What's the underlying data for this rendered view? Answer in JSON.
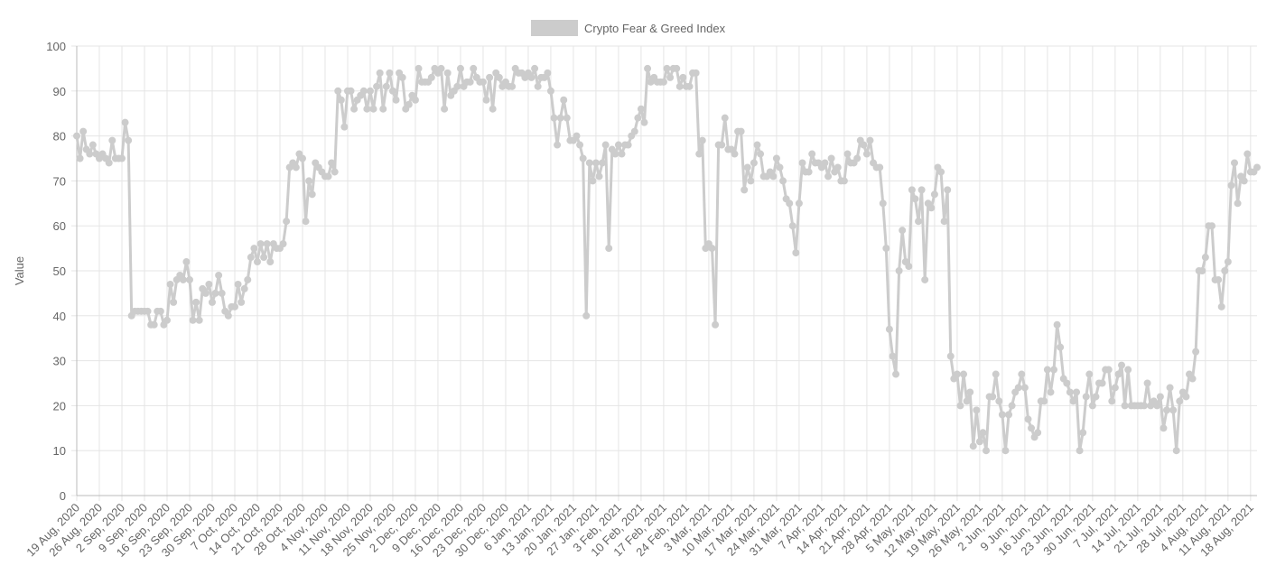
{
  "chart_data": {
    "type": "line",
    "series": [
      {
        "name": "Crypto Fear & Greed Index",
        "color": "#cccccc",
        "values": [
          80,
          75,
          81,
          77,
          76,
          78,
          76,
          75,
          76,
          75,
          74,
          79,
          75,
          75,
          75,
          83,
          79,
          40,
          41,
          41,
          41,
          41,
          41,
          38,
          38,
          41,
          41,
          38,
          39,
          47,
          43,
          48,
          49,
          48,
          52,
          48,
          39,
          43,
          39,
          46,
          45,
          47,
          43,
          45,
          49,
          45,
          41,
          40,
          42,
          42,
          47,
          43,
          46,
          48,
          53,
          55,
          52,
          56,
          53,
          56,
          52,
          56,
          55,
          55,
          56,
          61,
          73,
          74,
          73,
          76,
          75,
          61,
          70,
          67,
          74,
          73,
          72,
          71,
          71,
          74,
          72,
          90,
          88,
          82,
          90,
          90,
          86,
          88,
          89,
          90,
          86,
          90,
          86,
          91,
          94,
          86,
          91,
          94,
          90,
          88,
          94,
          93,
          86,
          87,
          89,
          88,
          95,
          92,
          92,
          92,
          93,
          95,
          94,
          95,
          86,
          94,
          89,
          90,
          91,
          95,
          91,
          92,
          92,
          95,
          93,
          92,
          92,
          88,
          93,
          86,
          94,
          93,
          91,
          92,
          91,
          91,
          95,
          94,
          94,
          93,
          94,
          93,
          95,
          91,
          93,
          93,
          94,
          90,
          84,
          78,
          84,
          88,
          84,
          79,
          79,
          80,
          78,
          75,
          40,
          74,
          70,
          74,
          71,
          74,
          78,
          55,
          77,
          76,
          78,
          76,
          78,
          78,
          80,
          81,
          84,
          86,
          83,
          95,
          92,
          93,
          92,
          92,
          92,
          95,
          93,
          95,
          95,
          91,
          93,
          91,
          91,
          94,
          94,
          76,
          79,
          55,
          56,
          55,
          38,
          78,
          78,
          84,
          77,
          77,
          76,
          81,
          81,
          68,
          73,
          70,
          74,
          78,
          76,
          71,
          71,
          72,
          71,
          75,
          73,
          70,
          66,
          65,
          60,
          54,
          65,
          74,
          72,
          72,
          76,
          74,
          74,
          73,
          74,
          71,
          75,
          72,
          73,
          70,
          70,
          76,
          74,
          74,
          75,
          79,
          78,
          76,
          79,
          74,
          73,
          73,
          65,
          55,
          37,
          31,
          27,
          50,
          59,
          52,
          51,
          68,
          66,
          61,
          68,
          48,
          65,
          64,
          67,
          73,
          72,
          61,
          68,
          31,
          26,
          27,
          20,
          27,
          21,
          23,
          11,
          19,
          12,
          14,
          10,
          22,
          22,
          27,
          21,
          18,
          10,
          18,
          20,
          23,
          24,
          27,
          24,
          17,
          15,
          13,
          14,
          21,
          21,
          28,
          23,
          28,
          38,
          33,
          26,
          25,
          23,
          21,
          23,
          10,
          14,
          22,
          27,
          20,
          22,
          25,
          25,
          28,
          28,
          21,
          24,
          27,
          29,
          20,
          28,
          20,
          20,
          20,
          20,
          20,
          25,
          20,
          21,
          20,
          22,
          15,
          19,
          24,
          19,
          10,
          21,
          23,
          22,
          27,
          26,
          32,
          50,
          50,
          53,
          60,
          60,
          48,
          48,
          42,
          50,
          52,
          69,
          74,
          65,
          71,
          70,
          76,
          72,
          72,
          73
        ]
      }
    ],
    "categories": [
      "19 Aug, 2020",
      null,
      null,
      null,
      null,
      null,
      null,
      "26 Aug, 2020",
      null,
      null,
      null,
      null,
      null,
      null,
      "2 Sep, 2020",
      null,
      null,
      null,
      null,
      null,
      null,
      "9 Sep, 2020",
      null,
      null,
      null,
      null,
      null,
      null,
      "16 Sep, 2020",
      null,
      null,
      null,
      null,
      null,
      null,
      "23 Sep, 2020",
      null,
      null,
      null,
      null,
      null,
      null,
      "30 Sep, 2020",
      null,
      null,
      null,
      null,
      null,
      null,
      "7 Oct, 2020",
      null,
      null,
      null,
      null,
      null,
      null,
      "14 Oct, 2020",
      null,
      null,
      null,
      null,
      null,
      null,
      "21 Oct, 2020",
      null,
      null,
      null,
      null,
      null,
      null,
      "28 Oct, 2020",
      null,
      null,
      null,
      null,
      null,
      null,
      "4 Nov, 2020",
      null,
      null,
      null,
      null,
      null,
      null,
      "11 Nov, 2020",
      null,
      null,
      null,
      null,
      null,
      null,
      "18 Nov, 2020",
      null,
      null,
      null,
      null,
      null,
      null,
      "25 Nov, 2020",
      null,
      null,
      null,
      null,
      null,
      null,
      "2 Dec, 2020",
      null,
      null,
      null,
      null,
      null,
      null,
      "9 Dec, 2020",
      null,
      null,
      null,
      null,
      null,
      null,
      "16 Dec, 2020",
      null,
      null,
      null,
      null,
      null,
      null,
      "23 Dec, 2020",
      null,
      null,
      null,
      null,
      null,
      null,
      "30 Dec, 2020",
      null,
      null,
      null,
      null,
      null,
      null,
      "6 Jan, 2021",
      null,
      null,
      null,
      null,
      null,
      null,
      "13 Jan, 2021",
      null,
      null,
      null,
      null,
      null,
      null,
      "20 Jan, 2021",
      null,
      null,
      null,
      null,
      null,
      null,
      "27 Jan, 2021",
      null,
      null,
      null,
      null,
      null,
      null,
      "3 Feb, 2021",
      null,
      null,
      null,
      null,
      null,
      null,
      "10 Feb, 2021",
      null,
      null,
      null,
      null,
      null,
      null,
      "17 Feb, 2021",
      null,
      null,
      null,
      null,
      null,
      null,
      "24 Feb, 2021",
      null,
      null,
      null,
      null,
      null,
      null,
      "3 Mar, 2021",
      null,
      null,
      null,
      null,
      null,
      null,
      "10 Mar, 2021",
      null,
      null,
      null,
      null,
      null,
      null,
      "17 Mar, 2021",
      null,
      null,
      null,
      null,
      null,
      null,
      "24 Mar, 2021",
      null,
      null,
      null,
      null,
      null,
      null,
      "31 Mar, 2021",
      null,
      null,
      null,
      null,
      null,
      null,
      "7 Apr, 2021",
      null,
      null,
      null,
      null,
      null,
      null,
      "14 Apr, 2021",
      null,
      null,
      null,
      null,
      null,
      null,
      "21 Apr, 2021",
      null,
      null,
      null,
      null,
      null,
      null,
      "28 Apr, 2021",
      null,
      null,
      null,
      null,
      null,
      null,
      "5 May, 2021",
      null,
      null,
      null,
      null,
      null,
      null,
      "12 May, 2021",
      null,
      null,
      null,
      null,
      null,
      null,
      "19 May, 2021",
      null,
      null,
      null,
      null,
      null,
      null,
      "26 May, 2021",
      null,
      null,
      null,
      null,
      null,
      null,
      "2 Jun, 2021",
      null,
      null,
      null,
      null,
      null,
      null,
      "9 Jun, 2021",
      null,
      null,
      null,
      null,
      null,
      null,
      "16 Jun, 2021",
      null,
      null,
      null,
      null,
      null,
      null,
      "23 Jun, 2021",
      null,
      null,
      null,
      null,
      null,
      null,
      "30 Jun, 2021",
      null,
      null,
      null,
      null,
      null,
      null,
      "7 Jul, 2021",
      null,
      null,
      null,
      null,
      null,
      null,
      "14 Jul, 2021",
      null,
      null,
      null,
      null,
      null,
      null,
      "21 Jul, 2021",
      null,
      null,
      null,
      null,
      null,
      null,
      "28 Jul, 2021",
      null,
      null,
      null,
      null,
      null,
      null,
      "4 Aug, 2021",
      null,
      null,
      null,
      null,
      null,
      null,
      "11 Aug, 2021",
      null,
      null,
      null,
      null,
      null,
      null,
      "18 Aug, 2021",
      null,
      null
    ],
    "ylabel": "Value",
    "ylim": [
      0,
      100
    ],
    "yticks": [
      0,
      10,
      20,
      30,
      40,
      50,
      60,
      70,
      80,
      90,
      100
    ],
    "grid": true,
    "legend": "top"
  }
}
